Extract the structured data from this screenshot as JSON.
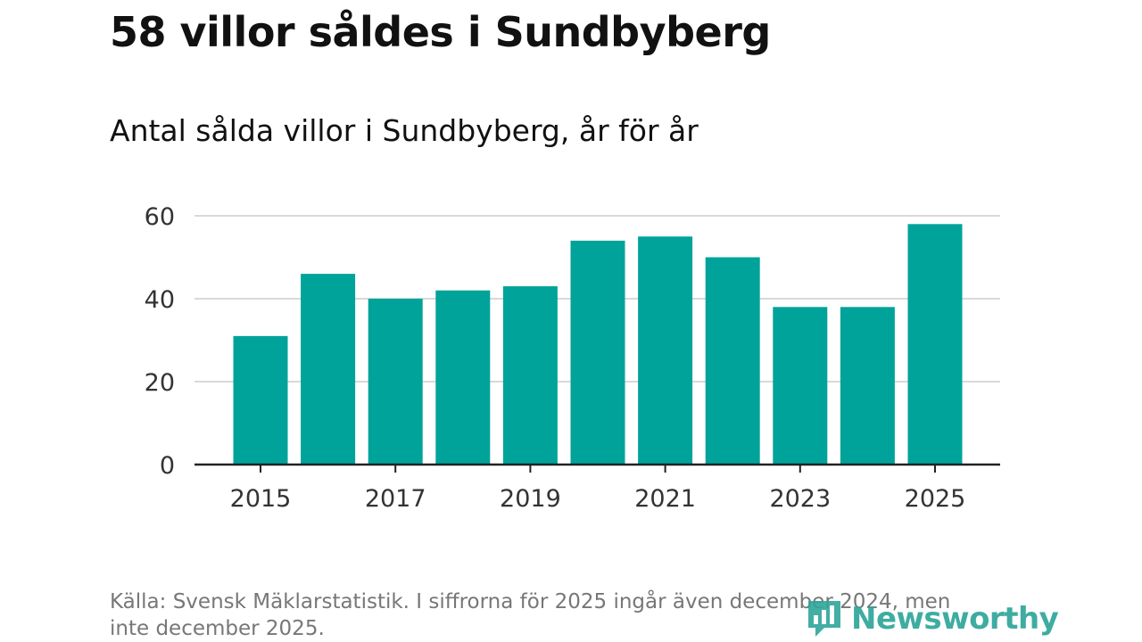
{
  "headline": "58 villor såldes i Sundbyberg",
  "chart_data": {
    "type": "bar",
    "title": "Antal sålda villor i Sundbyberg, år för år",
    "xlabel": "",
    "ylabel": "",
    "categories": [
      "2015",
      "2016",
      "2017",
      "2018",
      "2019",
      "2020",
      "2021",
      "2022",
      "2023",
      "2024",
      "2025"
    ],
    "values": [
      31,
      46,
      40,
      42,
      43,
      54,
      55,
      50,
      38,
      38,
      58
    ],
    "x_tick_labels": [
      "2015",
      "2017",
      "2019",
      "2021",
      "2023",
      "2025"
    ],
    "y_ticks": [
      0,
      20,
      40,
      60
    ],
    "ylim": [
      0,
      60
    ],
    "grid": true,
    "bar_color": "#00a39a"
  },
  "source_note": "Källa: Svensk Mäklarstatistik. I siffrorna för 2025 ingår även december 2024, men inte december 2025.",
  "brand": {
    "name": "Newsworthy",
    "icon": "newsworthy-logo-icon",
    "color": "#2ea59a"
  },
  "colors": {
    "axis": "#222222",
    "grid": "#d9d9d9",
    "text": "#333333"
  }
}
